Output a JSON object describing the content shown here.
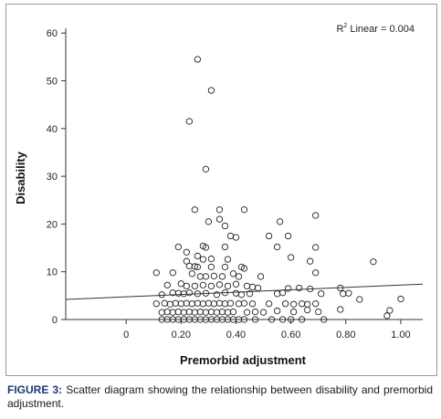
{
  "chart_data": {
    "type": "scatter",
    "xlabel": "Premorbid adjustment",
    "ylabel": "Disability",
    "xlim": [
      -0.22,
      1.08
    ],
    "ylim": [
      0,
      61
    ],
    "xticks": [
      "0",
      "0.20",
      "0.40",
      "0.60",
      "0.80",
      "1.00"
    ],
    "xtick_values": [
      0,
      0.2,
      0.4,
      0.6,
      0.8,
      1.0
    ],
    "yticks": [
      "0",
      "10",
      "20",
      "30",
      "40",
      "50",
      "60"
    ],
    "ytick_values": [
      0,
      10,
      20,
      30,
      40,
      50,
      60
    ],
    "annotation_main": "R",
    "annotation_sup": "2",
    "annotation_rest": " Linear = 0.004",
    "fit_line": {
      "x": [
        -0.22,
        1.08
      ],
      "y": [
        4.2,
        7.4
      ]
    },
    "grid": false,
    "marker": "open-circle",
    "points": [
      [
        0.26,
        54.5
      ],
      [
        0.31,
        48
      ],
      [
        0.23,
        41.5
      ],
      [
        0.29,
        31.5
      ],
      [
        0.25,
        23
      ],
      [
        0.34,
        23
      ],
      [
        0.43,
        23
      ],
      [
        0.69,
        21.8
      ],
      [
        0.3,
        20.5
      ],
      [
        0.34,
        21
      ],
      [
        0.36,
        19.6
      ],
      [
        0.56,
        20.5
      ],
      [
        0.59,
        17.5
      ],
      [
        0.52,
        17.5
      ],
      [
        0.38,
        17.5
      ],
      [
        0.4,
        17.2
      ],
      [
        0.19,
        15.2
      ],
      [
        0.28,
        15.4
      ],
      [
        0.29,
        15.1
      ],
      [
        0.36,
        15.2
      ],
      [
        0.55,
        15.2
      ],
      [
        0.69,
        15.1
      ],
      [
        0.22,
        14.1
      ],
      [
        0.26,
        13.3
      ],
      [
        0.28,
        12.6
      ],
      [
        0.31,
        12.7
      ],
      [
        0.37,
        12.6
      ],
      [
        0.6,
        13.0
      ],
      [
        0.22,
        12.2
      ],
      [
        0.23,
        11.2
      ],
      [
        0.25,
        11.1
      ],
      [
        0.26,
        11.0
      ],
      [
        0.31,
        11.0
      ],
      [
        0.36,
        11.0
      ],
      [
        0.42,
        11.0
      ],
      [
        0.43,
        10.7
      ],
      [
        0.67,
        12.2
      ],
      [
        0.9,
        12.1
      ],
      [
        0.11,
        9.8
      ],
      [
        0.17,
        9.8
      ],
      [
        0.24,
        9.6
      ],
      [
        0.27,
        9.0
      ],
      [
        0.29,
        9.0
      ],
      [
        0.32,
        9.1
      ],
      [
        0.35,
        9.0
      ],
      [
        0.39,
        9.6
      ],
      [
        0.41,
        9.0
      ],
      [
        0.49,
        9.0
      ],
      [
        0.69,
        9.8
      ],
      [
        0.15,
        7.2
      ],
      [
        0.2,
        7.5
      ],
      [
        0.22,
        7.0
      ],
      [
        0.25,
        7.0
      ],
      [
        0.28,
        7.2
      ],
      [
        0.31,
        7.0
      ],
      [
        0.34,
        7.3
      ],
      [
        0.37,
        7.0
      ],
      [
        0.4,
        7.4
      ],
      [
        0.44,
        7.0
      ],
      [
        0.46,
        6.8
      ],
      [
        0.48,
        6.6
      ],
      [
        0.59,
        6.5
      ],
      [
        0.63,
        6.6
      ],
      [
        0.67,
        6.4
      ],
      [
        0.78,
        6.6
      ],
      [
        0.13,
        5.2
      ],
      [
        0.17,
        5.6
      ],
      [
        0.19,
        5.5
      ],
      [
        0.21,
        5.4
      ],
      [
        0.23,
        5.6
      ],
      [
        0.26,
        5.4
      ],
      [
        0.29,
        5.5
      ],
      [
        0.33,
        5.2
      ],
      [
        0.36,
        5.6
      ],
      [
        0.4,
        5.5
      ],
      [
        0.42,
        5.2
      ],
      [
        0.45,
        5.4
      ],
      [
        0.55,
        5.4
      ],
      [
        0.57,
        5.6
      ],
      [
        0.71,
        5.4
      ],
      [
        0.79,
        5.4
      ],
      [
        0.81,
        5.5
      ],
      [
        0.11,
        3.3
      ],
      [
        0.14,
        3.4
      ],
      [
        0.16,
        3.2
      ],
      [
        0.18,
        3.4
      ],
      [
        0.2,
        3.3
      ],
      [
        0.22,
        3.4
      ],
      [
        0.24,
        3.3
      ],
      [
        0.26,
        3.4
      ],
      [
        0.28,
        3.3
      ],
      [
        0.3,
        3.4
      ],
      [
        0.32,
        3.3
      ],
      [
        0.34,
        3.4
      ],
      [
        0.36,
        3.3
      ],
      [
        0.38,
        3.4
      ],
      [
        0.41,
        3.3
      ],
      [
        0.43,
        3.4
      ],
      [
        0.46,
        3.3
      ],
      [
        0.52,
        3.3
      ],
      [
        0.58,
        3.3
      ],
      [
        0.61,
        3.2
      ],
      [
        0.64,
        3.3
      ],
      [
        0.66,
        3.2
      ],
      [
        0.69,
        3.3
      ],
      [
        0.85,
        4.2
      ],
      [
        1.0,
        4.3
      ],
      [
        0.13,
        1.5
      ],
      [
        0.15,
        1.6
      ],
      [
        0.17,
        1.5
      ],
      [
        0.19,
        1.6
      ],
      [
        0.21,
        1.5
      ],
      [
        0.23,
        1.6
      ],
      [
        0.25,
        1.5
      ],
      [
        0.27,
        1.6
      ],
      [
        0.29,
        1.5
      ],
      [
        0.31,
        1.6
      ],
      [
        0.33,
        1.5
      ],
      [
        0.35,
        1.6
      ],
      [
        0.37,
        1.5
      ],
      [
        0.39,
        1.6
      ],
      [
        0.44,
        1.5
      ],
      [
        0.47,
        1.6
      ],
      [
        0.5,
        1.5
      ],
      [
        0.55,
        1.8
      ],
      [
        0.61,
        1.6
      ],
      [
        0.66,
        2.0
      ],
      [
        0.7,
        1.6
      ],
      [
        0.78,
        2.1
      ],
      [
        0.96,
        1.9
      ],
      [
        0.13,
        0
      ],
      [
        0.15,
        0
      ],
      [
        0.17,
        0
      ],
      [
        0.19,
        0
      ],
      [
        0.21,
        0
      ],
      [
        0.23,
        0
      ],
      [
        0.25,
        0
      ],
      [
        0.27,
        0
      ],
      [
        0.29,
        0
      ],
      [
        0.31,
        0
      ],
      [
        0.33,
        0
      ],
      [
        0.35,
        0
      ],
      [
        0.37,
        0
      ],
      [
        0.39,
        0
      ],
      [
        0.41,
        0
      ],
      [
        0.43,
        0
      ],
      [
        0.47,
        0
      ],
      [
        0.53,
        0
      ],
      [
        0.57,
        0
      ],
      [
        0.6,
        0
      ],
      [
        0.64,
        0
      ],
      [
        0.72,
        0
      ],
      [
        0.95,
        0.8
      ]
    ]
  },
  "caption": {
    "label": "FIGURE 3:",
    "text": " Scatter diagram showing the relationship between disability and premorbid adjustment."
  }
}
